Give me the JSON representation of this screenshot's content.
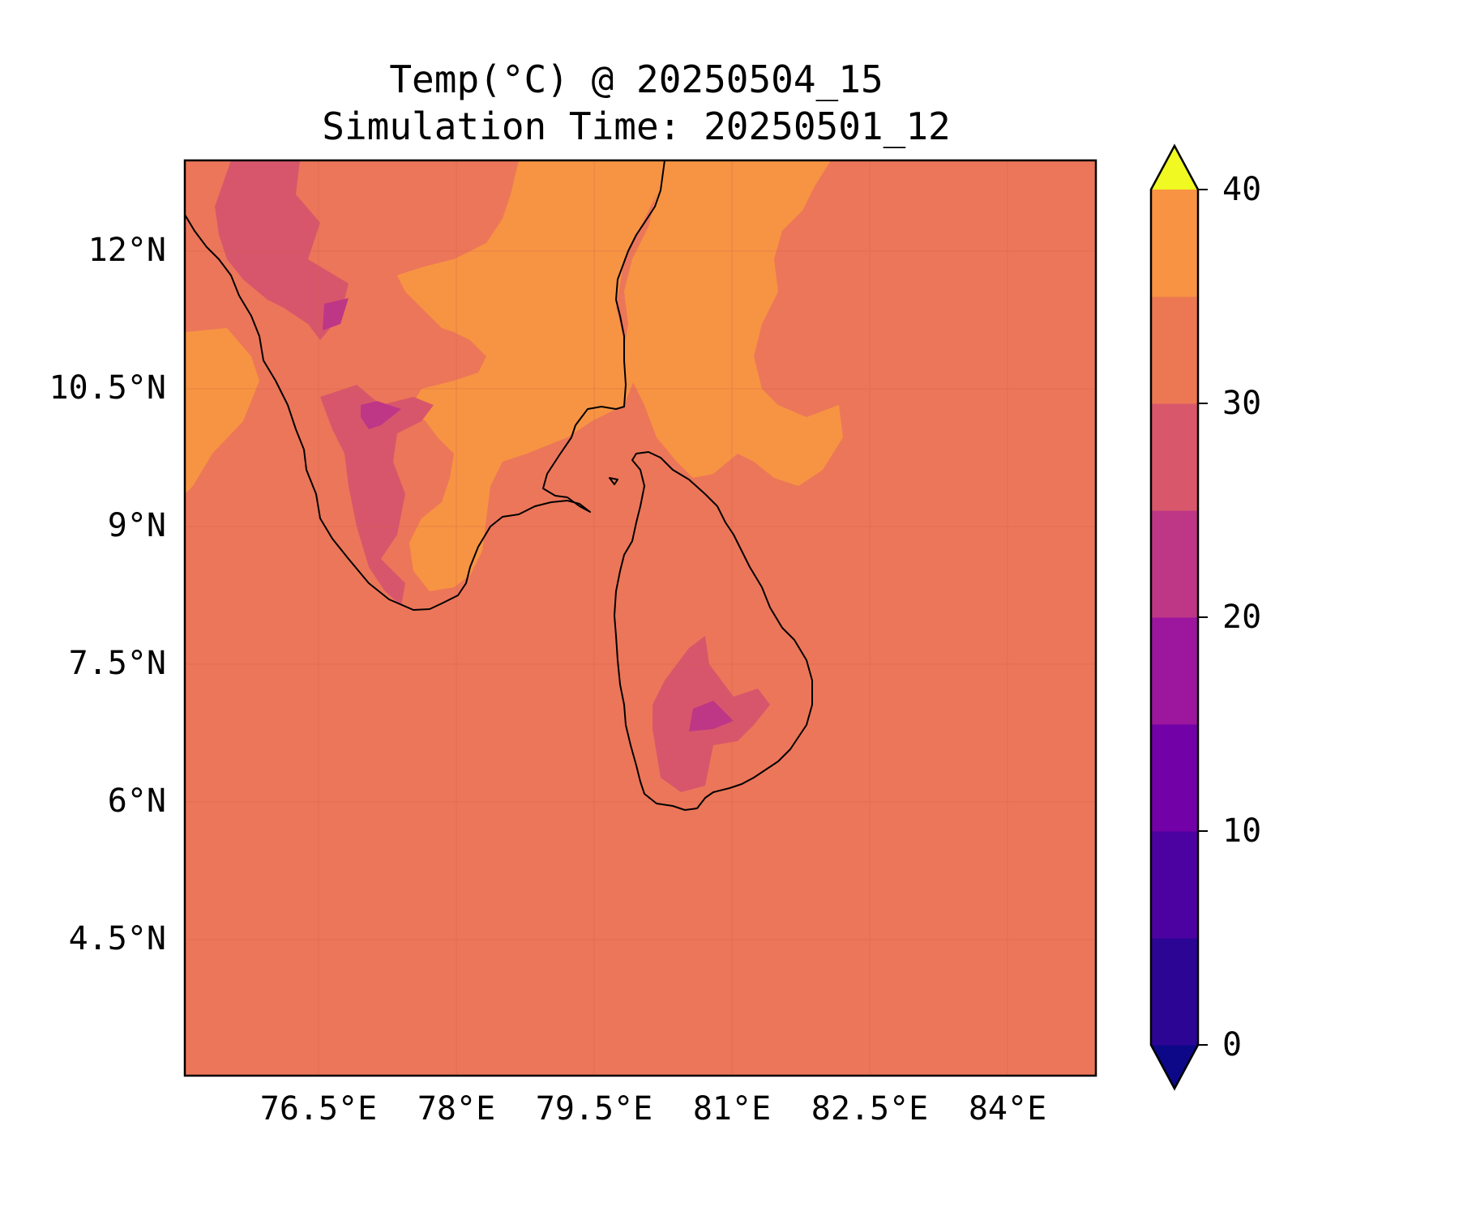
{
  "title": "Temp(°C) @ 20250504_15",
  "subtitle": "Simulation Time: 20250501_12",
  "lat_ticks": [
    "12°N",
    "10.5°N",
    "9°N",
    "7.5°N",
    "6°N",
    "4.5°N"
  ],
  "lon_ticks": [
    "76.5°E",
    "78°E",
    "79.5°E",
    "81°E",
    "82.5°E",
    "84°E"
  ],
  "colorbar": {
    "ticks": [
      "40",
      "30",
      "20",
      "10",
      "0"
    ],
    "levels": [
      -5,
      0,
      5,
      10,
      15,
      20,
      25,
      30,
      35,
      40,
      45
    ],
    "colors": [
      "#0d0887",
      "#2c0594",
      "#4c02a1",
      "#7201a8",
      "#9c179e",
      "#bd3786",
      "#d8576b",
      "#ec7853",
      "#f79342",
      "#feb72d",
      "#f0f921"
    ]
  },
  "colors": {
    "background_field": "#ec7659",
    "warm_field": "#f79443",
    "cool_field": "#d8566b",
    "cold_field": "#bd3786",
    "coastline": "#000000"
  }
}
